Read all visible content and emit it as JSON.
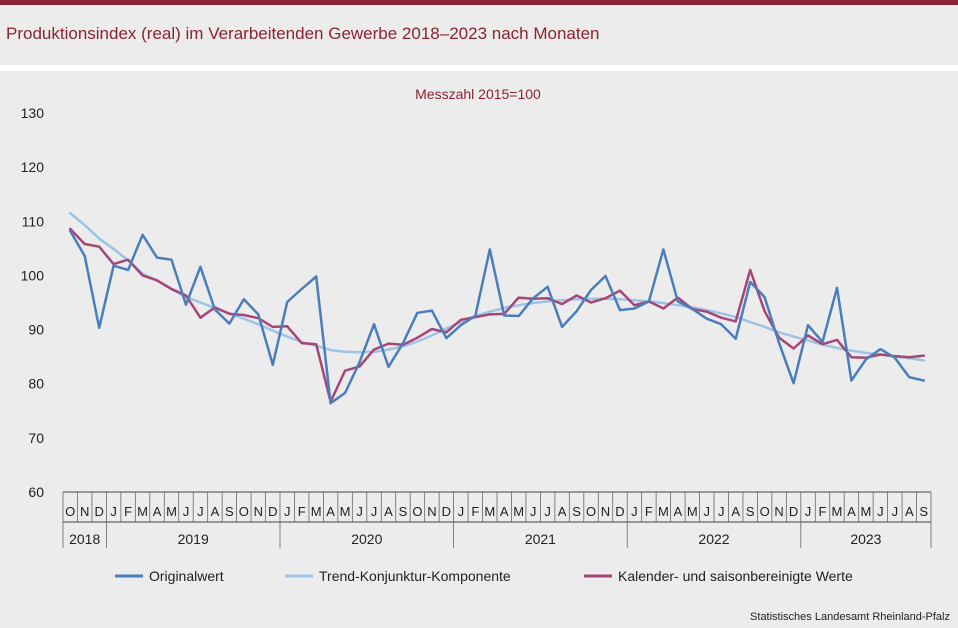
{
  "page_title": "Produktionsindex (real) im Verarbeitenden Gewerbe 2018–2023 nach Monaten",
  "source": "Statistisches Landesamt Rheinland-Pfalz",
  "colors": {
    "brand": "#8b2233",
    "original": "#4a7ebb",
    "trend": "#9dc3e6",
    "adjusted": "#a64677"
  },
  "chart_data": {
    "type": "line",
    "subtitle": "Messzahl 2015=100",
    "ylim": [
      60,
      130
    ],
    "yticks": [
      60,
      70,
      80,
      90,
      100,
      110,
      120,
      130
    ],
    "grid": false,
    "legend_position": "bottom",
    "month_labels": [
      "O",
      "N",
      "D",
      "J",
      "F",
      "M",
      "A",
      "M",
      "J",
      "J",
      "A",
      "S",
      "O",
      "N",
      "D",
      "J",
      "F",
      "M",
      "A",
      "M",
      "J",
      "J",
      "A",
      "S",
      "O",
      "N",
      "D",
      "J",
      "F",
      "M",
      "A",
      "M",
      "J",
      "J",
      "A",
      "S",
      "O",
      "N",
      "D",
      "J",
      "F",
      "M",
      "A",
      "M",
      "J",
      "J",
      "A",
      "S",
      "O",
      "N",
      "D",
      "J",
      "F",
      "M",
      "A",
      "M",
      "J",
      "J",
      "A",
      "S"
    ],
    "years": [
      {
        "label": "2018",
        "months": 3
      },
      {
        "label": "2019",
        "months": 12
      },
      {
        "label": "2020",
        "months": 12
      },
      {
        "label": "2021",
        "months": 12
      },
      {
        "label": "2022",
        "months": 12
      },
      {
        "label": "2023",
        "months": 9
      }
    ],
    "series": [
      {
        "name": "Originalwert",
        "color": "#4a7ebb",
        "values": [
          108.2,
          103.6,
          90.3,
          101.8,
          101.0,
          107.5,
          103.3,
          102.9,
          94.6,
          101.6,
          93.7,
          91.1,
          95.6,
          92.8,
          83.5,
          95.1,
          97.5,
          99.8,
          76.4,
          78.3,
          84.0,
          91.0,
          83.1,
          87.5,
          93.1,
          93.5,
          88.4,
          90.8,
          92.5,
          104.8,
          92.6,
          92.5,
          95.8,
          97.9,
          90.5,
          93.4,
          97.3,
          99.9,
          93.6,
          93.9,
          95.2,
          104.8,
          95.2,
          93.8,
          92.0,
          91.0,
          88.3,
          98.8,
          96.0,
          87.5,
          80.1,
          90.8,
          87.7,
          97.7,
          80.6,
          84.5,
          86.4,
          84.8,
          81.2,
          80.6
        ]
      },
      {
        "name": "Trend-Konjunktur-Komponente",
        "color": "#9dc3e6",
        "values": [
          111.5,
          109.3,
          106.8,
          104.9,
          102.8,
          100.3,
          99.0,
          97.5,
          96.0,
          95.0,
          94.0,
          93.0,
          92.0,
          91.0,
          89.8,
          88.7,
          87.7,
          87.0,
          86.2,
          85.9,
          85.8,
          85.9,
          86.3,
          86.9,
          87.8,
          88.9,
          90.2,
          91.4,
          92.5,
          93.3,
          94.0,
          94.5,
          94.9,
          95.2,
          95.4,
          95.6,
          95.7,
          95.7,
          95.6,
          95.4,
          95.2,
          94.9,
          94.5,
          94.1,
          93.6,
          93.0,
          92.3,
          91.4,
          90.5,
          89.5,
          88.7,
          88.0,
          87.2,
          86.6,
          86.1,
          85.7,
          85.4,
          85.0,
          84.7,
          84.3
        ]
      },
      {
        "name": "Kalender- und saisonbereinigte Werte",
        "color": "#a64677",
        "values": [
          108.6,
          105.8,
          105.3,
          102.1,
          102.9,
          100.0,
          99.1,
          97.5,
          96.3,
          92.2,
          94.1,
          92.9,
          92.7,
          92.1,
          90.5,
          90.6,
          87.5,
          87.3,
          76.7,
          82.4,
          83.2,
          86.3,
          87.4,
          87.2,
          88.5,
          90.1,
          89.5,
          91.8,
          92.3,
          92.8,
          92.9,
          95.9,
          95.7,
          95.8,
          94.7,
          96.3,
          95.0,
          95.8,
          97.2,
          94.5,
          95.2,
          93.9,
          95.9,
          93.8,
          93.3,
          92.2,
          91.5,
          101.0,
          93.4,
          88.5,
          86.5,
          88.9,
          87.3,
          88.1,
          84.9,
          84.8,
          85.4,
          85.1,
          84.9,
          85.2
        ]
      }
    ]
  }
}
